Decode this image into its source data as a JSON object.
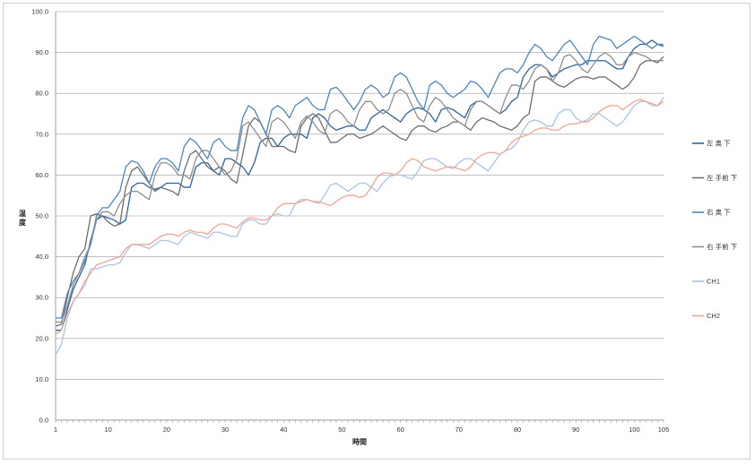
{
  "chart_data": {
    "type": "line",
    "title": "",
    "xlabel": "時間",
    "ylabel": "温度",
    "xlim": [
      1,
      105
    ],
    "ylim": [
      0,
      100
    ],
    "x_ticks": [
      1,
      10,
      20,
      30,
      40,
      50,
      60,
      70,
      80,
      90,
      100,
      105
    ],
    "y_ticks": [
      "0.0",
      "10.0",
      "20.0",
      "30.0",
      "40.0",
      "50.0",
      "60.0",
      "70.0",
      "80.0",
      "90.0",
      "100.0"
    ],
    "grid": "horizontal",
    "legend_position": "right",
    "series": [
      {
        "name": "左 奥 下",
        "color": "#2e63a1",
        "values": [
          22.0,
          22.0,
          27.0,
          32.0,
          35.0,
          38.0,
          44.0,
          49.0,
          50.0,
          49.5,
          49.0,
          48.0,
          49.0,
          57.0,
          58.0,
          58.0,
          57.0,
          56.5,
          57.0,
          58.0,
          58.0,
          58.0,
          57.0,
          57.0,
          62.0,
          63.0,
          63.0,
          61.0,
          60.0,
          64.0,
          64.0,
          63.0,
          62.0,
          60.0,
          63.0,
          68.0,
          69.0,
          69.0,
          67.0,
          69.0,
          70.0,
          70.0,
          70.0,
          69.0,
          74.0,
          75.0,
          74.0,
          72.0,
          71.0,
          71.5,
          72.0,
          72.0,
          71.0,
          71.0,
          74.0,
          75.0,
          76.0,
          75.0,
          74.0,
          73.0,
          75.0,
          76.0,
          76.5,
          76.0,
          75.0,
          73.0,
          76.0,
          76.5,
          76.0,
          75.0,
          74.0,
          77.0,
          78.0,
          78.0,
          77.0,
          76.0,
          75.0,
          76.0,
          78.0,
          79.0,
          84.0,
          86.0,
          87.0,
          87.0,
          86.0,
          84.0,
          85.0,
          86.0,
          86.5,
          87.0,
          87.0,
          88.0,
          88.0,
          88.0,
          88.0,
          87.0,
          86.0,
          86.0,
          89.0,
          91.0,
          92.0,
          92.0,
          93.0,
          92.0,
          91.5
        ]
      },
      {
        "name": "左 手前 下",
        "color": "#6e6e6e",
        "values": [
          23.0,
          23.5,
          30.0,
          36.0,
          40.0,
          42.0,
          50.0,
          50.5,
          50.0,
          48.5,
          47.5,
          48.0,
          57.0,
          61.0,
          62.0,
          60.0,
          58.0,
          56.0,
          57.0,
          56.5,
          56.0,
          55.0,
          61.0,
          65.0,
          66.0,
          64.0,
          62.0,
          61.0,
          62.0,
          61.0,
          59.0,
          58.0,
          65.0,
          72.0,
          74.0,
          73.0,
          70.0,
          67.0,
          67.0,
          67.0,
          66.0,
          65.5,
          72.0,
          74.0,
          75.0,
          74.0,
          71.0,
          68.0,
          68.0,
          69.0,
          70.0,
          70.0,
          69.0,
          69.5,
          70.0,
          71.0,
          72.0,
          71.0,
          70.0,
          69.0,
          68.5,
          71.0,
          72.0,
          72.0,
          71.0,
          70.5,
          71.5,
          72.0,
          73.0,
          73.0,
          72.0,
          71.0,
          73.0,
          74.0,
          73.5,
          73.0,
          72.0,
          71.5,
          71.0,
          72.0,
          74.0,
          75.0,
          83.0,
          84.0,
          84.0,
          83.0,
          82.0,
          81.5,
          82.5,
          83.5,
          84.0,
          84.0,
          83.5,
          84.0,
          84.0,
          83.0,
          82.0,
          81.0,
          82.0,
          84.0,
          87.0,
          88.0,
          88.0,
          87.5,
          89.0
        ]
      },
      {
        "name": "右 奥 下",
        "color": "#4a86c2",
        "values": [
          25.0,
          25.0,
          31.0,
          34.0,
          36.0,
          39.0,
          43.0,
          50.0,
          52.0,
          52.0,
          54.0,
          56.0,
          62.0,
          63.5,
          63.0,
          61.0,
          58.0,
          62.0,
          64.0,
          64.0,
          63.0,
          61.0,
          67.0,
          69.0,
          68.0,
          66.0,
          64.0,
          68.0,
          69.0,
          67.0,
          66.0,
          66.0,
          74.0,
          77.0,
          76.0,
          73.0,
          70.0,
          76.0,
          77.0,
          76.0,
          74.0,
          77.0,
          78.0,
          79.0,
          77.0,
          76.0,
          76.0,
          81.0,
          81.5,
          80.0,
          78.0,
          76.0,
          78.0,
          81.0,
          82.0,
          81.0,
          79.0,
          80.0,
          84.0,
          85.0,
          84.0,
          81.0,
          78.0,
          76.0,
          82.0,
          83.0,
          82.0,
          80.0,
          79.0,
          80.0,
          81.0,
          83.0,
          82.5,
          81.0,
          79.0,
          82.0,
          85.0,
          86.0,
          86.0,
          85.0,
          87.0,
          90.0,
          92.0,
          91.0,
          89.0,
          88.0,
          90.0,
          92.0,
          93.0,
          91.0,
          89.0,
          87.0,
          92.0,
          94.0,
          93.5,
          93.0,
          91.0,
          92.0,
          93.0,
          94.0,
          93.0,
          92.0,
          91.0,
          92.0,
          92.0
        ]
      },
      {
        "name": "右 手前 下",
        "color": "#8e8e8e",
        "values": [
          24.0,
          24.0,
          28.0,
          33.0,
          36.0,
          40.0,
          43.0,
          49.0,
          51.0,
          51.0,
          50.0,
          53.0,
          55.0,
          56.0,
          56.0,
          55.0,
          54.0,
          60.0,
          63.0,
          63.0,
          62.0,
          60.0,
          60.0,
          59.0,
          64.0,
          66.0,
          66.0,
          64.0,
          62.0,
          60.0,
          61.0,
          64.0,
          72.0,
          73.0,
          71.0,
          69.0,
          67.0,
          73.0,
          74.0,
          73.0,
          71.0,
          69.0,
          73.0,
          74.5,
          73.0,
          71.0,
          70.0,
          75.0,
          76.0,
          75.0,
          73.0,
          72.0,
          76.0,
          78.0,
          78.0,
          76.0,
          75.0,
          76.0,
          80.0,
          81.0,
          80.0,
          77.0,
          74.0,
          73.0,
          77.0,
          79.0,
          78.0,
          76.0,
          74.0,
          73.0,
          72.0,
          76.0,
          78.0,
          78.0,
          77.0,
          76.0,
          75.0,
          79.0,
          82.0,
          82.0,
          81.0,
          83.0,
          86.0,
          87.0,
          86.0,
          83.0,
          85.0,
          89.0,
          89.5,
          88.0,
          86.0,
          85.0,
          87.0,
          89.0,
          90.0,
          89.0,
          87.0,
          87.0,
          89.0,
          90.0,
          89.5,
          89.0,
          88.0,
          88.0,
          88.0
        ]
      },
      {
        "name": "CH1",
        "color": "#a9c4e4",
        "values": [
          16.0,
          18.5,
          25.0,
          29.0,
          31.0,
          33.0,
          37.0,
          37.0,
          37.5,
          38.0,
          38.0,
          38.5,
          41.0,
          43.0,
          43.0,
          42.5,
          42.0,
          43.0,
          44.0,
          44.0,
          43.5,
          43.0,
          45.0,
          46.0,
          45.5,
          45.0,
          44.5,
          46.0,
          46.0,
          45.5,
          45.0,
          45.0,
          48.0,
          49.0,
          49.0,
          48.0,
          48.0,
          50.0,
          50.5,
          50.0,
          50.0,
          53.0,
          54.0,
          54.0,
          53.5,
          53.0,
          55.0,
          57.5,
          58.0,
          57.0,
          56.0,
          57.0,
          58.0,
          58.0,
          57.0,
          56.0,
          58.0,
          59.5,
          60.0,
          60.0,
          59.5,
          59.0,
          61.0,
          63.5,
          64.0,
          64.0,
          63.0,
          62.0,
          61.5,
          63.0,
          64.0,
          64.0,
          63.0,
          62.0,
          61.0,
          63.0,
          65.0,
          66.0,
          66.5,
          68.0,
          71.0,
          73.0,
          73.5,
          73.0,
          72.0,
          72.0,
          75.0,
          76.0,
          76.0,
          74.0,
          73.0,
          73.5,
          75.0,
          75.0,
          74.0,
          73.0,
          72.0,
          73.0,
          75.0,
          77.0,
          78.0,
          78.0,
          77.0,
          77.0,
          79.0
        ]
      },
      {
        "name": "CH2",
        "color": "#f0a593",
        "values": [
          21.0,
          22.0,
          26.0,
          29.0,
          31.0,
          34.0,
          36.0,
          38.0,
          38.5,
          39.0,
          39.5,
          40.0,
          42.0,
          43.0,
          43.0,
          43.0,
          43.0,
          44.0,
          45.0,
          45.5,
          45.5,
          45.0,
          46.0,
          46.5,
          46.0,
          46.0,
          45.5,
          47.0,
          48.0,
          48.0,
          47.5,
          47.0,
          48.5,
          49.5,
          49.5,
          49.0,
          49.0,
          50.0,
          52.0,
          53.0,
          53.0,
          53.0,
          53.5,
          54.0,
          53.5,
          53.5,
          53.0,
          52.5,
          53.5,
          54.5,
          55.0,
          55.0,
          54.5,
          55.0,
          57.0,
          59.5,
          60.5,
          60.5,
          60.0,
          61.0,
          63.0,
          64.0,
          63.5,
          62.0,
          61.5,
          61.0,
          61.5,
          62.0,
          62.0,
          61.5,
          61.0,
          62.0,
          64.0,
          65.0,
          65.5,
          65.5,
          65.0,
          66.0,
          68.0,
          69.0,
          69.5,
          70.0,
          71.0,
          71.5,
          71.5,
          71.0,
          71.0,
          72.0,
          72.5,
          72.5,
          73.0,
          73.0,
          74.0,
          75.5,
          76.5,
          77.0,
          77.0,
          76.0,
          77.0,
          78.0,
          78.5,
          78.0,
          77.5,
          77.0,
          78.0
        ]
      }
    ]
  }
}
